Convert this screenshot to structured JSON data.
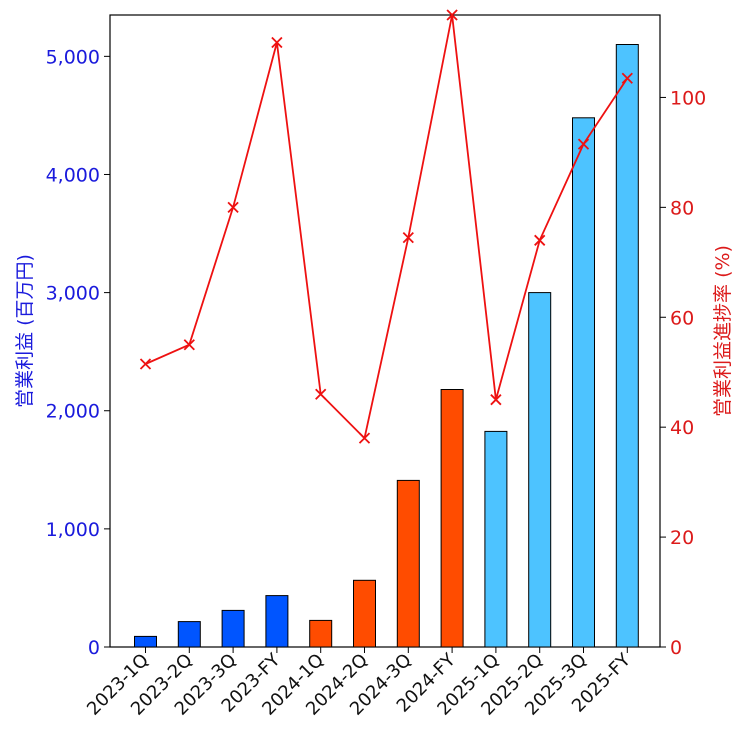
{
  "chart_data": {
    "type": "bar",
    "categories": [
      "2023-1Q",
      "2023-2Q",
      "2023-3Q",
      "2023-FY",
      "2024-1Q",
      "2024-2Q",
      "2024-3Q",
      "2024-FY",
      "2025-1Q",
      "2025-2Q",
      "2025-3Q",
      "2025-FY"
    ],
    "series": [
      {
        "axis": "left",
        "type": "bar",
        "values": [
          90,
          215,
          310,
          435,
          225,
          565,
          1410,
          2180,
          1825,
          3000,
          4480,
          5100
        ],
        "colors": [
          "#0055ff",
          "#0055ff",
          "#0055ff",
          "#0055ff",
          "#ff4c00",
          "#ff4c00",
          "#ff4c00",
          "#ff4c00",
          "#4dc3ff",
          "#4dc3ff",
          "#4dc3ff",
          "#4dc3ff"
        ]
      },
      {
        "axis": "right",
        "type": "line",
        "marker": "x",
        "color": "#ee1111",
        "values": [
          51.5,
          55,
          80,
          110,
          46,
          38,
          74.5,
          115,
          45,
          74,
          91.5,
          103.5
        ]
      }
    ],
    "ylabel": "営業利益 (百万円)",
    "y2label": "営業利益進捗率 (%)",
    "ylim": [
      0,
      5350
    ],
    "y2lim": [
      0,
      115
    ],
    "yticks": [
      0,
      1000,
      2000,
      3000,
      4000,
      5000
    ],
    "ytick_labels": [
      "0",
      "1,000",
      "2,000",
      "3,000",
      "4,000",
      "5,000"
    ],
    "y2ticks": [
      0,
      20,
      40,
      60,
      80,
      100
    ],
    "y2tick_labels": [
      "0",
      "20",
      "40",
      "60",
      "80",
      "100"
    ],
    "grid": false,
    "left_axis_color": "#1a1adc",
    "right_axis_color": "#dc1a1a"
  }
}
